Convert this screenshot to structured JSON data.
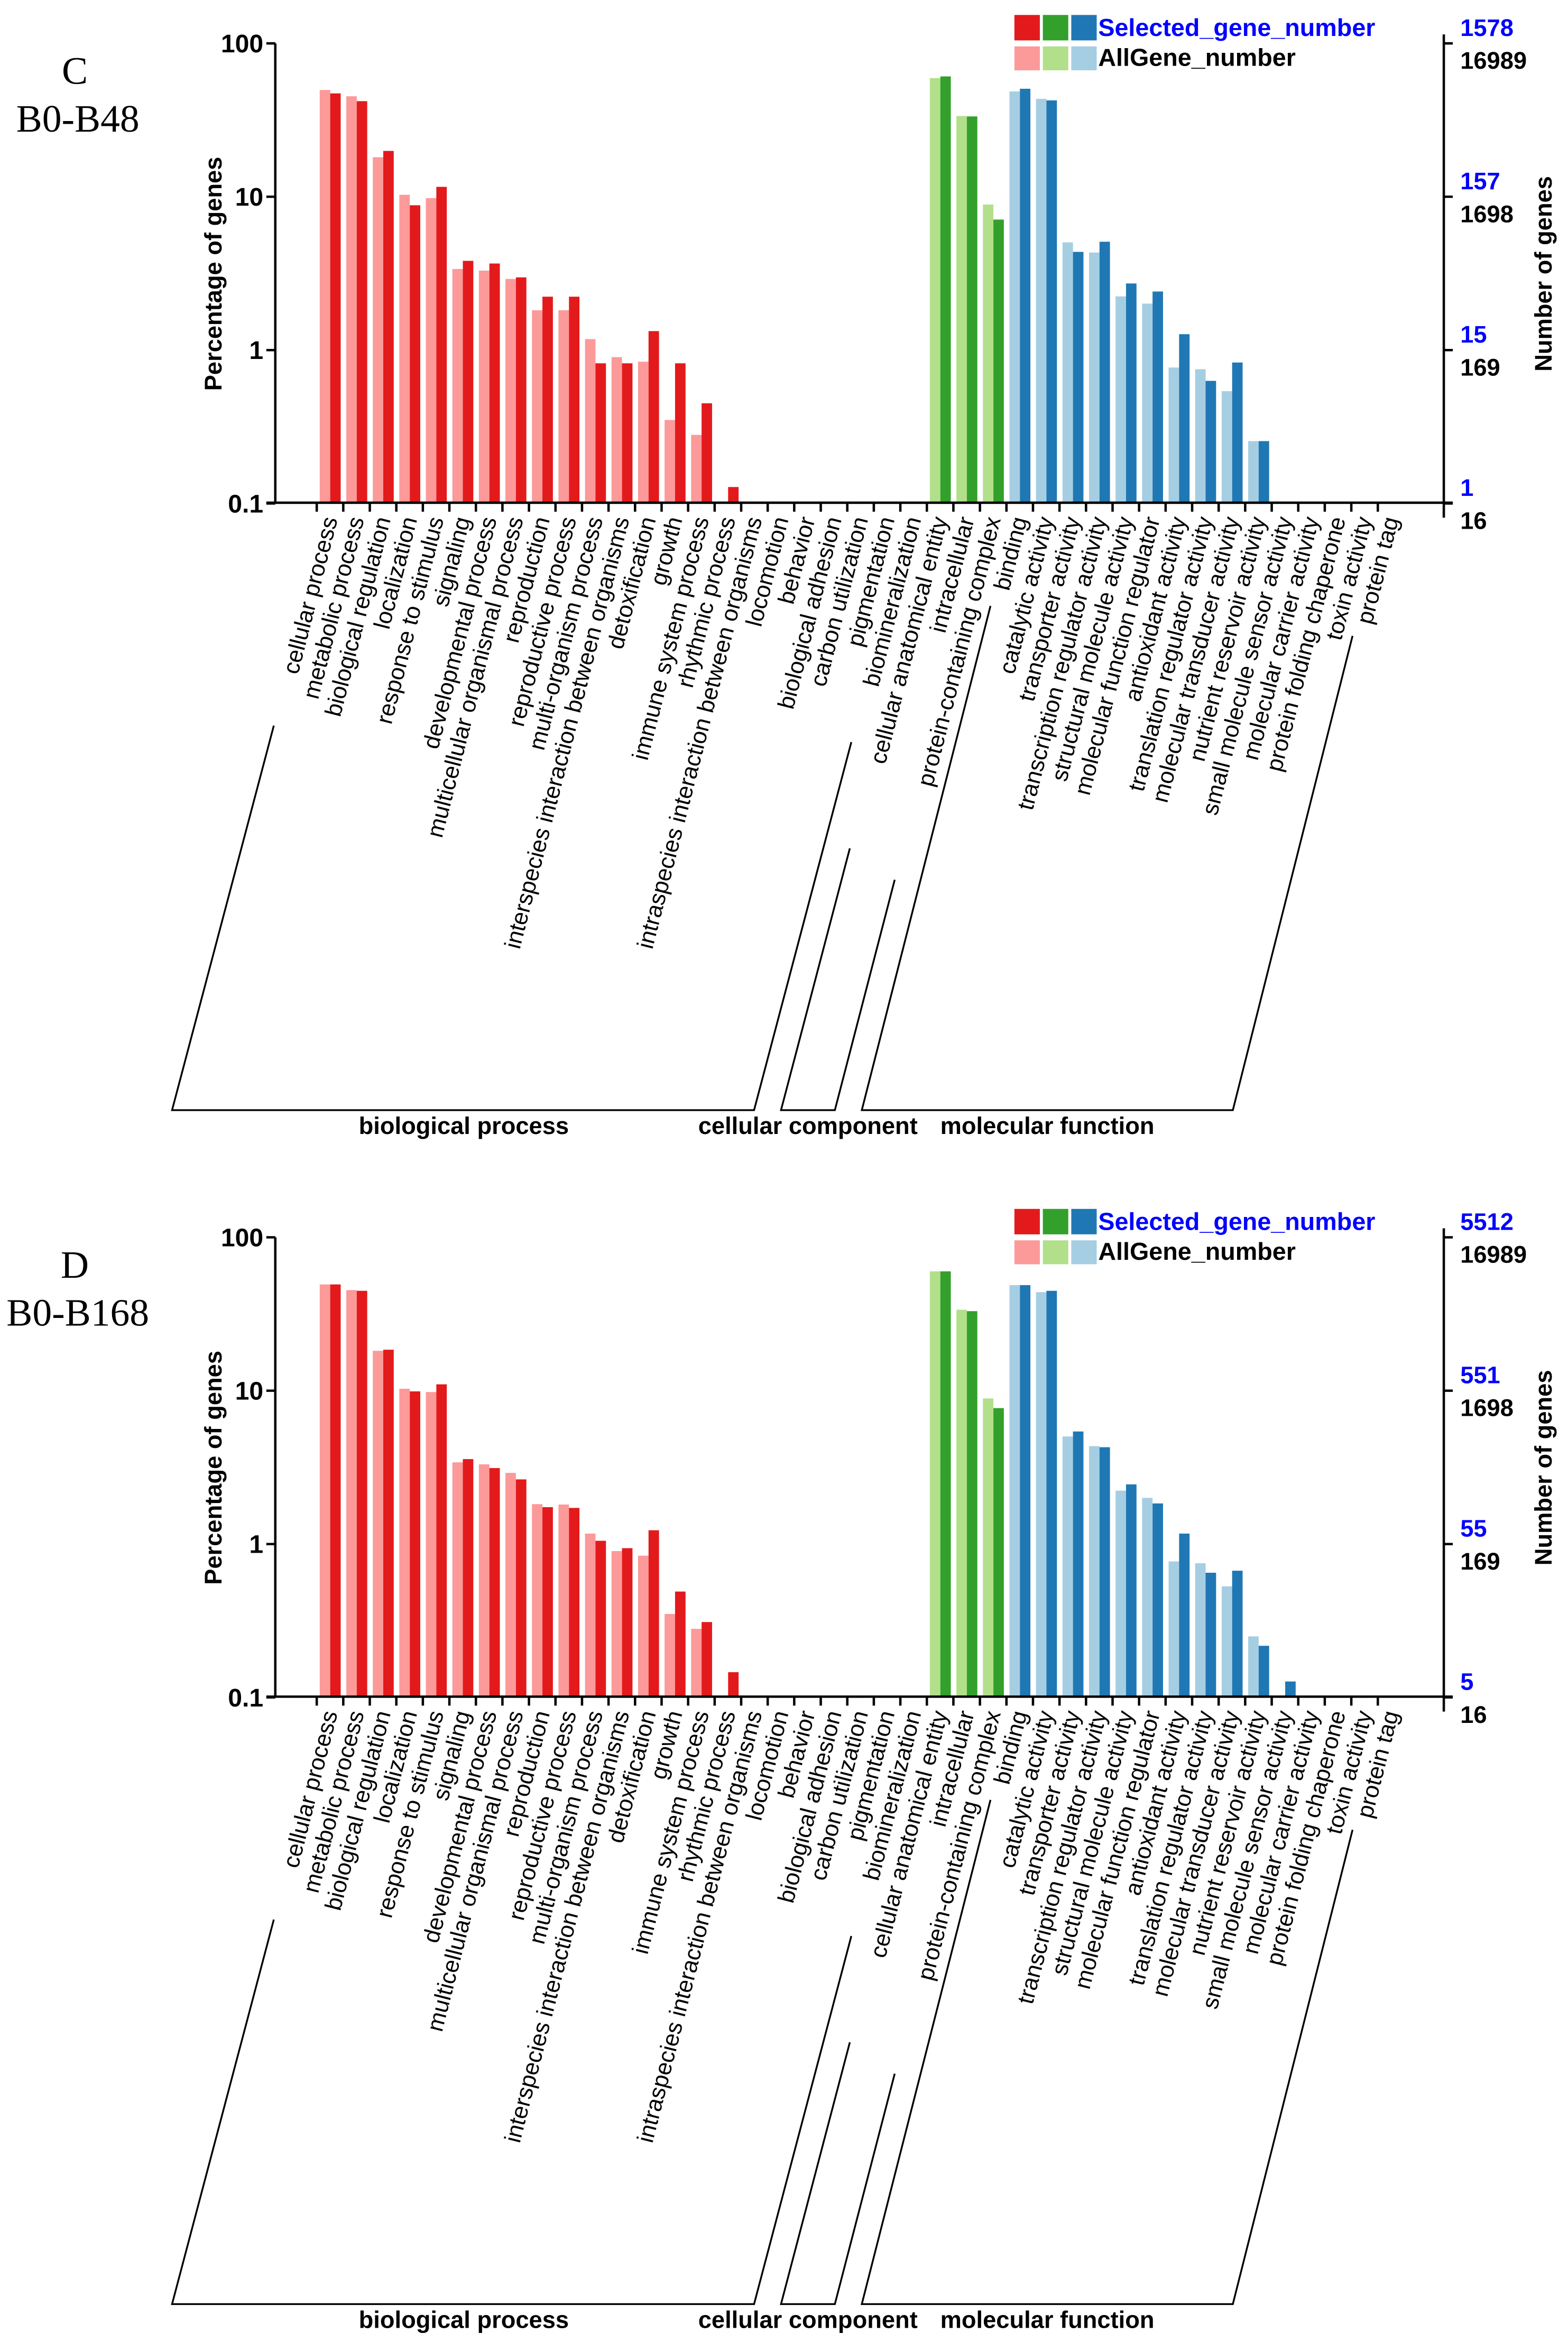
{
  "legend": {
    "selected_label": "Selected_gene_number",
    "all_label": "AllGene_number",
    "selected_colors": [
      "#e31a1c",
      "#33a02c",
      "#1f78b4"
    ],
    "all_colors": [
      "#fb9a99",
      "#b2df8a",
      "#a6cee3"
    ],
    "selected_text_color": "#0000ff"
  },
  "groups": [
    {
      "name": "biological process",
      "start": 0,
      "end": 22
    },
    {
      "name": "cellular component",
      "start": 23,
      "end": 25
    },
    {
      "name": "molecular function",
      "start": 26,
      "end": 40
    }
  ],
  "chart_data": [
    {
      "type": "bar",
      "panel_letter": "C",
      "panel_title": "B0-B48",
      "scale": "log",
      "ylim": [
        0.1,
        100
      ],
      "ylabel": "Percentage of genes",
      "ylabel_right": "Number of genes",
      "left_ticks": [
        "100",
        "10",
        "1",
        "0.1"
      ],
      "right_ticks_selected": [
        "1578",
        "157",
        "15",
        "1"
      ],
      "right_ticks_all": [
        "16989",
        "1698",
        "169",
        "16"
      ],
      "categories": [
        "cellular process",
        "metabolic process",
        "biological regulation",
        "localization",
        "response to stimulus",
        "signaling",
        "developmental process",
        "multicellular organismal process",
        "reproduction",
        "reproductive process",
        "multi-organism process",
        "interspecies interaction between organisms",
        "detoxification",
        "growth",
        "immune system process",
        "rhythmic process",
        "intraspecies interaction between organisms",
        "locomotion",
        "behavior",
        "biological adhesion",
        "carbon utilization",
        "pigmentation",
        "biomineralization",
        "cellular anatomical entity",
        "intracellular",
        "protein-containing complex",
        "binding",
        "catalytic activity",
        "transporter activity",
        "transcription regulator activity",
        "structural molecule activity",
        "molecular function regulator",
        "antioxidant activity",
        "translation regulator activity",
        "molecular transducer activity",
        "nutrient reservoir activity",
        "small molecule sensor activity",
        "molecular carrier activity",
        "protein folding chaperone",
        "toxin activity",
        "protein tag"
      ],
      "series": [
        {
          "name": "AllGene_number",
          "values": [
            49.7,
            45.2,
            18.1,
            10.3,
            9.8,
            3.38,
            3.3,
            2.91,
            1.82,
            1.82,
            1.18,
            0.9,
            0.84,
            0.35,
            0.28,
            0,
            0,
            0,
            0,
            0,
            0,
            0,
            0,
            59.4,
            33.6,
            8.9,
            48.6,
            43.5,
            5.04,
            4.33,
            2.24,
            2.01,
            0.77,
            0.75,
            0.54,
            0.255,
            0,
            0,
            0,
            0,
            0
          ]
        },
        {
          "name": "Selected_gene_number",
          "values": [
            47.2,
            42.0,
            19.9,
            8.8,
            11.6,
            3.82,
            3.67,
            2.98,
            2.23,
            2.23,
            0.82,
            0.82,
            1.33,
            0.82,
            0.45,
            0.128,
            0,
            0,
            0,
            0,
            0,
            0,
            0,
            60.9,
            33.4,
            7.1,
            50.6,
            42.5,
            4.37,
            5.09,
            2.72,
            2.41,
            1.27,
            0.63,
            0.83,
            0.255,
            0,
            0,
            0,
            0,
            0
          ]
        }
      ]
    },
    {
      "type": "bar",
      "panel_letter": "D",
      "panel_title": "B0-B168",
      "scale": "log",
      "ylim": [
        0.1,
        100
      ],
      "ylabel": "Percentage of genes",
      "ylabel_right": "Number of genes",
      "left_ticks": [
        "100",
        "10",
        "1",
        "0.1"
      ],
      "right_ticks_selected": [
        "5512",
        "551",
        "55",
        "5"
      ],
      "right_ticks_all": [
        "16989",
        "1698",
        "169",
        "16"
      ],
      "categories": [
        "cellular process",
        "metabolic process",
        "biological regulation",
        "localization",
        "response to stimulus",
        "signaling",
        "developmental process",
        "multicellular organismal process",
        "reproduction",
        "reproductive process",
        "multi-organism process",
        "interspecies interaction between organisms",
        "detoxification",
        "growth",
        "immune system process",
        "rhythmic process",
        "intraspecies interaction between organisms",
        "locomotion",
        "behavior",
        "biological adhesion",
        "carbon utilization",
        "pigmentation",
        "biomineralization",
        "cellular anatomical entity",
        "intracellular",
        "protein-containing complex",
        "binding",
        "catalytic activity",
        "transporter activity",
        "transcription regulator activity",
        "structural molecule activity",
        "molecular function regulator",
        "antioxidant activity",
        "translation regulator activity",
        "molecular transducer activity",
        "nutrient reservoir activity",
        "small molecule sensor activity",
        "molecular carrier activity",
        "protein folding chaperone",
        "toxin activity",
        "protein tag"
      ],
      "series": [
        {
          "name": "AllGene_number",
          "values": [
            49.3,
            45.3,
            18.2,
            10.3,
            9.8,
            3.41,
            3.31,
            2.91,
            1.82,
            1.81,
            1.17,
            0.9,
            0.84,
            0.35,
            0.28,
            0,
            0,
            0,
            0,
            0,
            0,
            0,
            0,
            60,
            33.7,
            8.9,
            48.8,
            43.9,
            5.03,
            4.35,
            2.23,
            2.0,
            0.77,
            0.75,
            0.53,
            0.25,
            0,
            0,
            0,
            0,
            0
          ]
        },
        {
          "name": "Selected_gene_number",
          "values": [
            49.3,
            44.8,
            18.5,
            9.9,
            11.0,
            3.58,
            3.13,
            2.64,
            1.74,
            1.72,
            1.05,
            0.94,
            1.23,
            0.49,
            0.31,
            0.146,
            0,
            0,
            0,
            0,
            0,
            0,
            0,
            60,
            33.0,
            7.7,
            48.8,
            44.8,
            5.42,
            4.28,
            2.45,
            1.84,
            1.17,
            0.65,
            0.67,
            0.217,
            0.127,
            0,
            0,
            0,
            0
          ]
        }
      ]
    }
  ]
}
